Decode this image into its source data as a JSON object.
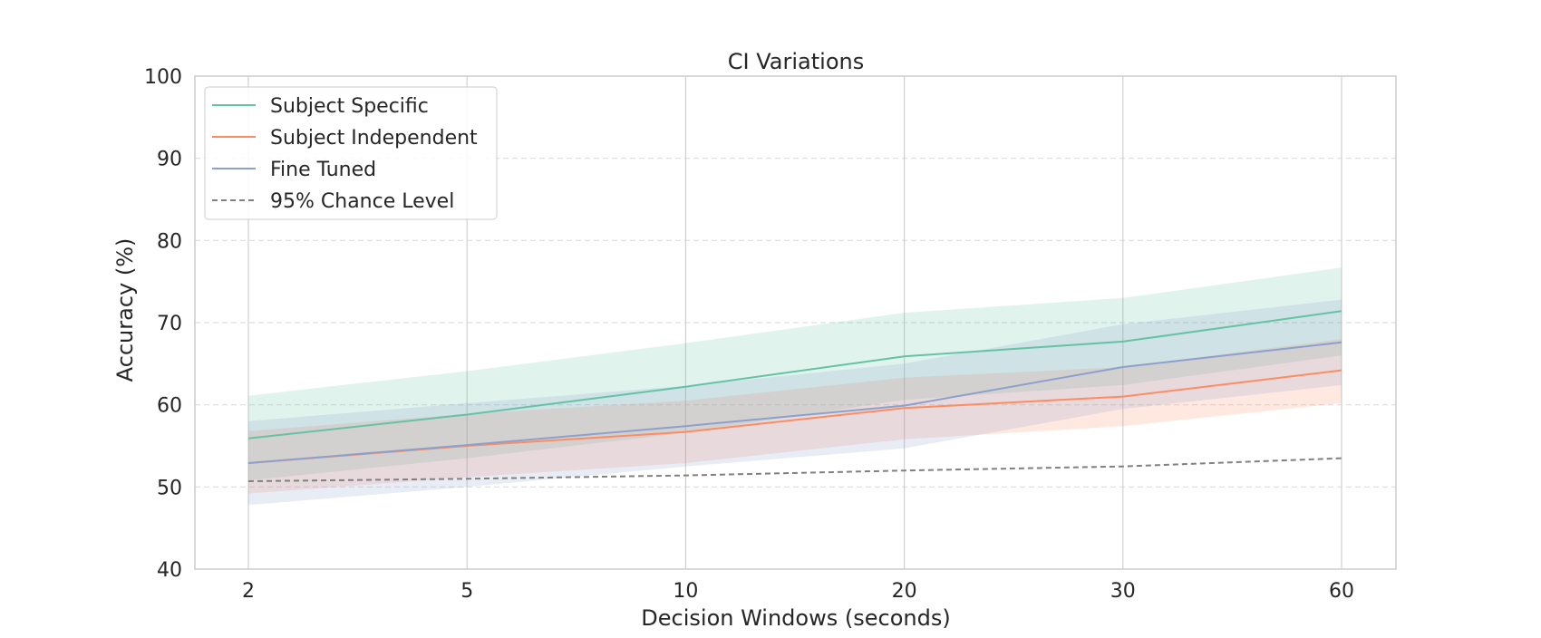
{
  "chart_data": {
    "type": "line",
    "title": "CI Variations",
    "xlabel": "Decision Windows (seconds)",
    "ylabel": "Accuracy (%)",
    "x": [
      "2",
      "5",
      "10",
      "20",
      "30",
      "60"
    ],
    "yticks": [
      "40",
      "50",
      "60",
      "70",
      "80",
      "90",
      "100"
    ],
    "ylim": [
      40,
      100
    ],
    "grid": true,
    "legend_position": "top-left",
    "series": [
      {
        "name": "Subject Specific",
        "color": "#66c2a5",
        "values": [
          55.9,
          58.8,
          62.2,
          65.9,
          67.7,
          71.4
        ],
        "ci_lower": [
          50.8,
          53.5,
          56.6,
          60.6,
          62.4,
          66.0
        ],
        "ci_upper": [
          61.1,
          64.1,
          67.5,
          71.2,
          73.0,
          76.7
        ]
      },
      {
        "name": "Subject Independent",
        "color": "#fc8d62",
        "values": [
          52.9,
          55.0,
          56.7,
          59.6,
          61.0,
          64.2
        ],
        "ci_lower": [
          49.2,
          51.2,
          52.9,
          55.8,
          57.4,
          60.2
        ],
        "ci_upper": [
          56.8,
          58.9,
          60.5,
          63.3,
          64.6,
          68.0
        ]
      },
      {
        "name": "Fine Tuned",
        "color": "#8da0cb",
        "values": [
          52.9,
          55.1,
          57.4,
          59.9,
          64.6,
          67.6
        ],
        "ci_lower": [
          47.8,
          50.0,
          52.5,
          54.7,
          59.5,
          62.4
        ],
        "ci_upper": [
          58.0,
          60.2,
          62.3,
          65.0,
          69.8,
          72.8
        ]
      },
      {
        "name": "95% Chance Level",
        "color": "#808080",
        "dashed": true,
        "values": [
          50.7,
          51.0,
          51.4,
          52.0,
          52.5,
          53.5
        ]
      }
    ]
  }
}
